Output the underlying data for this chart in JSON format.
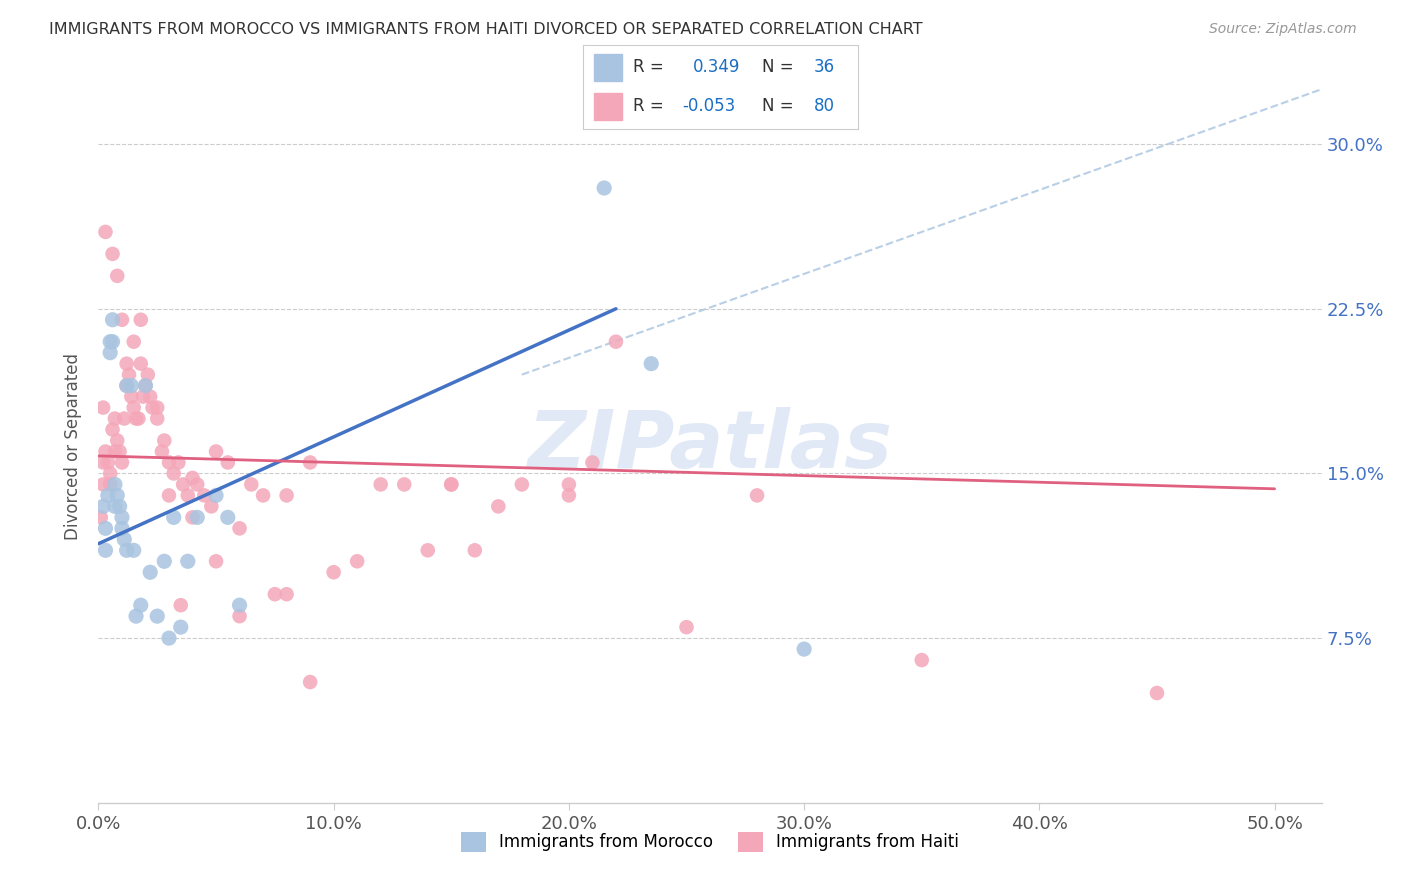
{
  "title": "IMMIGRANTS FROM MOROCCO VS IMMIGRANTS FROM HAITI DIVORCED OR SEPARATED CORRELATION CHART",
  "source": "Source: ZipAtlas.com",
  "xlabel_ticks": [
    "0.0%",
    "10.0%",
    "20.0%",
    "30.0%",
    "40.0%",
    "50.0%"
  ],
  "xlabel_vals": [
    0.0,
    0.1,
    0.2,
    0.3,
    0.4,
    0.5
  ],
  "ylabel_ticks": [
    "7.5%",
    "15.0%",
    "22.5%",
    "30.0%"
  ],
  "ylabel_vals": [
    0.075,
    0.15,
    0.225,
    0.3
  ],
  "ylabel_label": "Divorced or Separated",
  "xlim": [
    0.0,
    0.52
  ],
  "ylim": [
    0.0,
    0.325
  ],
  "morocco_R": 0.349,
  "morocco_N": 36,
  "haiti_R": -0.053,
  "haiti_N": 80,
  "morocco_color": "#a8c4e0",
  "haiti_color": "#f4a7b9",
  "morocco_line_color": "#4472c4",
  "haiti_line_color": "#e06080",
  "dashed_line_color": "#a8c4e0",
  "legend_R_color": "#1a6fc4",
  "watermark": "ZIPatlas",
  "morocco_line_x0": 0.0,
  "morocco_line_y0": 0.118,
  "morocco_line_x1": 0.22,
  "morocco_line_y1": 0.225,
  "haiti_line_x0": 0.0,
  "haiti_line_y0": 0.158,
  "haiti_line_x1": 0.5,
  "haiti_line_y1": 0.143,
  "dash_line_x0": 0.18,
  "dash_line_y0": 0.195,
  "dash_line_x1": 0.52,
  "dash_line_y1": 0.325,
  "morocco_x": [
    0.002,
    0.003,
    0.003,
    0.004,
    0.005,
    0.005,
    0.006,
    0.006,
    0.007,
    0.007,
    0.008,
    0.009,
    0.01,
    0.01,
    0.011,
    0.012,
    0.012,
    0.014,
    0.015,
    0.016,
    0.018,
    0.02,
    0.022,
    0.025,
    0.028,
    0.03,
    0.032,
    0.035,
    0.038,
    0.042,
    0.05,
    0.055,
    0.06,
    0.215,
    0.235,
    0.3
  ],
  "morocco_y": [
    0.135,
    0.125,
    0.115,
    0.14,
    0.21,
    0.205,
    0.22,
    0.21,
    0.145,
    0.135,
    0.14,
    0.135,
    0.13,
    0.125,
    0.12,
    0.115,
    0.19,
    0.19,
    0.115,
    0.085,
    0.09,
    0.19,
    0.105,
    0.085,
    0.11,
    0.075,
    0.13,
    0.08,
    0.11,
    0.13,
    0.14,
    0.13,
    0.09,
    0.28,
    0.2,
    0.07
  ],
  "haiti_x": [
    0.001,
    0.002,
    0.002,
    0.003,
    0.004,
    0.005,
    0.005,
    0.006,
    0.007,
    0.007,
    0.008,
    0.009,
    0.01,
    0.011,
    0.012,
    0.013,
    0.014,
    0.015,
    0.016,
    0.017,
    0.018,
    0.019,
    0.02,
    0.021,
    0.022,
    0.023,
    0.025,
    0.027,
    0.028,
    0.03,
    0.032,
    0.034,
    0.036,
    0.038,
    0.04,
    0.042,
    0.045,
    0.048,
    0.05,
    0.055,
    0.06,
    0.065,
    0.07,
    0.075,
    0.08,
    0.09,
    0.1,
    0.11,
    0.12,
    0.13,
    0.14,
    0.15,
    0.16,
    0.17,
    0.18,
    0.2,
    0.21,
    0.22,
    0.25,
    0.28,
    0.002,
    0.003,
    0.006,
    0.008,
    0.01,
    0.012,
    0.015,
    0.018,
    0.025,
    0.03,
    0.035,
    0.04,
    0.05,
    0.06,
    0.08,
    0.09,
    0.15,
    0.2,
    0.35,
    0.45
  ],
  "haiti_y": [
    0.13,
    0.145,
    0.155,
    0.16,
    0.155,
    0.15,
    0.145,
    0.17,
    0.175,
    0.16,
    0.165,
    0.16,
    0.155,
    0.175,
    0.19,
    0.195,
    0.185,
    0.18,
    0.175,
    0.175,
    0.2,
    0.185,
    0.19,
    0.195,
    0.185,
    0.18,
    0.175,
    0.16,
    0.165,
    0.155,
    0.15,
    0.155,
    0.145,
    0.14,
    0.148,
    0.145,
    0.14,
    0.135,
    0.16,
    0.155,
    0.125,
    0.145,
    0.14,
    0.095,
    0.14,
    0.155,
    0.105,
    0.11,
    0.145,
    0.145,
    0.115,
    0.145,
    0.115,
    0.135,
    0.145,
    0.14,
    0.155,
    0.21,
    0.08,
    0.14,
    0.18,
    0.26,
    0.25,
    0.24,
    0.22,
    0.2,
    0.21,
    0.22,
    0.18,
    0.14,
    0.09,
    0.13,
    0.11,
    0.085,
    0.095,
    0.055,
    0.145,
    0.145,
    0.065,
    0.05
  ]
}
